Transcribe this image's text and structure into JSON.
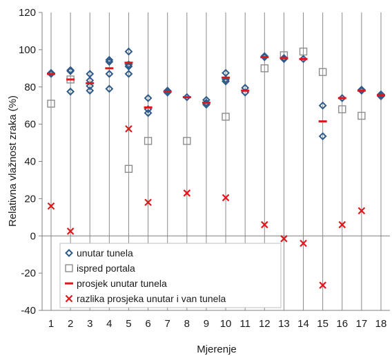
{
  "chart_data": {
    "type": "scatter",
    "xlabel": "Mjerenje",
    "ylabel": "Relativna vlažnost zraka (%)",
    "xlim": [
      1,
      18
    ],
    "ylim": [
      -40,
      120
    ],
    "y_ticks": [
      -40,
      -20,
      0,
      20,
      40,
      60,
      80,
      100,
      120
    ],
    "x_ticks": [
      1,
      2,
      3,
      4,
      5,
      6,
      7,
      8,
      9,
      10,
      11,
      12,
      13,
      14,
      15,
      16,
      17,
      18
    ],
    "grid": "vertical",
    "legend_position": "lower-left",
    "series": [
      {
        "name": "unutar tunela",
        "marker": "diamond-open",
        "color": "#2e5b8a",
        "points": [
          [
            1,
            87.5
          ],
          [
            1,
            87
          ],
          [
            2,
            89
          ],
          [
            2,
            88.5
          ],
          [
            2,
            77.5
          ],
          [
            3,
            87
          ],
          [
            3,
            83.5
          ],
          [
            3,
            80.5
          ],
          [
            3,
            78
          ],
          [
            4,
            94.5
          ],
          [
            4,
            93.5
          ],
          [
            4,
            87
          ],
          [
            4,
            79
          ],
          [
            5,
            99
          ],
          [
            5,
            92
          ],
          [
            5,
            91
          ],
          [
            5,
            87
          ],
          [
            6,
            74
          ],
          [
            6,
            68
          ],
          [
            6,
            66
          ],
          [
            7,
            78
          ],
          [
            7,
            77
          ],
          [
            8,
            74.5
          ],
          [
            9,
            73
          ],
          [
            9,
            71.5
          ],
          [
            9,
            70.5
          ],
          [
            10,
            87.5
          ],
          [
            10,
            84
          ],
          [
            10,
            83
          ],
          [
            11,
            79.5
          ],
          [
            11,
            77
          ],
          [
            12,
            96
          ],
          [
            12,
            96.5
          ],
          [
            13,
            95.5
          ],
          [
            13,
            95
          ],
          [
            14,
            95
          ],
          [
            15,
            70
          ],
          [
            15,
            53.5
          ],
          [
            16,
            74
          ],
          [
            17,
            78.5
          ],
          [
            17,
            78
          ],
          [
            18,
            76
          ],
          [
            18,
            75
          ]
        ]
      },
      {
        "name": "ispred portala",
        "marker": "square-open",
        "color": "#8c8c8c",
        "points": [
          [
            1,
            71
          ],
          [
            2,
            84
          ],
          [
            5,
            36
          ],
          [
            6,
            51
          ],
          [
            8,
            51
          ],
          [
            10,
            64
          ],
          [
            12,
            90
          ],
          [
            13,
            97
          ],
          [
            14,
            99
          ],
          [
            15,
            88
          ],
          [
            16,
            68
          ],
          [
            17,
            64.5
          ]
        ]
      },
      {
        "name": "prosjek unutar tunela",
        "marker": "dash",
        "color": "#e0161b",
        "points": [
          [
            1,
            87
          ],
          [
            2,
            84
          ],
          [
            3,
            82
          ],
          [
            4,
            90
          ],
          [
            5,
            93
          ],
          [
            6,
            69
          ],
          [
            7,
            77.5
          ],
          [
            8,
            74.5
          ],
          [
            9,
            71.5
          ],
          [
            10,
            85
          ],
          [
            11,
            78
          ],
          [
            12,
            96
          ],
          [
            13,
            95.5
          ],
          [
            14,
            95
          ],
          [
            15,
            61.5
          ],
          [
            16,
            74
          ],
          [
            17,
            78
          ],
          [
            18,
            75.5
          ]
        ]
      },
      {
        "name": "razlika prosjeka unutar i van tunela",
        "marker": "x",
        "color": "#e0161b",
        "points": [
          [
            1,
            16
          ],
          [
            2,
            2.5
          ],
          [
            5,
            57.5
          ],
          [
            6,
            18
          ],
          [
            8,
            23
          ],
          [
            10,
            20.5
          ],
          [
            12,
            6
          ],
          [
            13,
            -1.5
          ],
          [
            14,
            -4
          ],
          [
            15,
            -26.5
          ],
          [
            16,
            6
          ],
          [
            17,
            13.5
          ]
        ]
      }
    ]
  }
}
